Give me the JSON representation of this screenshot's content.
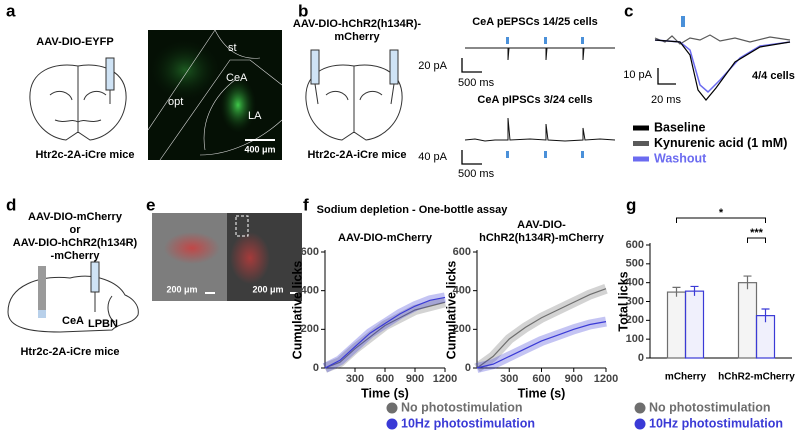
{
  "panels": {
    "a": {
      "letter": "a",
      "virus": "AAV-DIO-EYFP",
      "mouse": "Htr2c-2A-iCre mice",
      "image_labels": [
        "st",
        "opt",
        "CeA",
        "LA"
      ],
      "scale_bar": "400 μm"
    },
    "b": {
      "letter": "b",
      "virus": [
        "AAV-DIO-hChR2(h134R)-",
        "mCherry"
      ],
      "mouse": "Htr2c-2A-iCre mice",
      "traces": [
        {
          "title": "CeA pEPSCs 14/25 cells",
          "scale_y": "20 pA",
          "scale_x": "500 ms"
        },
        {
          "title": "CeA pIPSCs 3/24 cells",
          "scale_y": "40 pA",
          "scale_x": "500 ms"
        }
      ]
    },
    "c": {
      "letter": "c",
      "scale_y": "10 pA",
      "scale_x": "20 ms",
      "cells": "4/4 cells",
      "legend": [
        {
          "name": "Baseline",
          "color": "#000000"
        },
        {
          "name": "Kynurenic acid (1 mM)",
          "color": "#5a5a5a"
        },
        {
          "name": "Washout",
          "color": "#6b6bf0"
        }
      ]
    },
    "d": {
      "letter": "d",
      "virus": [
        "AAV-DIO-mCherry",
        "or",
        "AAV-DIO-hChR2(h134R)",
        "-mCherry"
      ],
      "regions": [
        "CeA",
        "LPBN"
      ],
      "mouse": "Htr2c-2A-iCre mice"
    },
    "e": {
      "letter": "e",
      "scale_bars": [
        "200 μm",
        "200 μm"
      ]
    },
    "f": {
      "letter": "f",
      "title": "Sodium depletion - One-bottle assay"
    },
    "g": {
      "letter": "g"
    }
  },
  "chart_data": [
    {
      "type": "line",
      "title": [
        "AAV-DIO-mCherry"
      ],
      "xlabel": "Time (s)",
      "ylabel": "Cumulative licks",
      "x": [
        0,
        150,
        300,
        450,
        600,
        750,
        900,
        1050,
        1200
      ],
      "xlim": [
        0,
        1200
      ],
      "xticks": [
        300,
        600,
        900,
        1200
      ],
      "ylim": [
        0,
        600
      ],
      "yticks": [
        0,
        200,
        400,
        600
      ],
      "series": [
        {
          "name": "No photostimulation",
          "color": "#6e6e6e",
          "values": [
            0,
            30,
            100,
            160,
            220,
            260,
            300,
            320,
            340
          ]
        },
        {
          "name": "10Hz photostimulation",
          "color": "#3a3ad6",
          "values": [
            0,
            40,
            110,
            180,
            230,
            280,
            320,
            350,
            365
          ]
        }
      ]
    },
    {
      "type": "line",
      "title": [
        "AAV-DIO-",
        "hChR2(h134R)-mCherry"
      ],
      "xlabel": "Time (s)",
      "ylabel": "Cumulative licks",
      "x": [
        0,
        150,
        300,
        450,
        600,
        750,
        900,
        1050,
        1200
      ],
      "xlim": [
        0,
        1200
      ],
      "xticks": [
        300,
        600,
        900,
        1200
      ],
      "ylim": [
        0,
        600
      ],
      "yticks": [
        0,
        200,
        400,
        600
      ],
      "series": [
        {
          "color": "#6e6e6e",
          "values": [
            0,
            60,
            150,
            210,
            260,
            300,
            340,
            380,
            410
          ]
        },
        {
          "color": "#3a3ad6",
          "values": [
            0,
            20,
            60,
            100,
            140,
            170,
            200,
            225,
            240
          ]
        }
      ]
    },
    {
      "type": "bar",
      "ylabel": "Total licks",
      "categories": [
        "mCherry",
        "hChR2-mCherry"
      ],
      "ylim": [
        0,
        600
      ],
      "yticks": [
        0,
        100,
        200,
        300,
        400,
        500,
        600
      ],
      "series": [
        {
          "name": "No photostimulation",
          "color": "#6e6e6e",
          "values": [
            350,
            400
          ],
          "errors": [
            25,
            35
          ]
        },
        {
          "name": "10Hz photostimulation",
          "color": "#3a3ad6",
          "values": [
            355,
            225
          ],
          "errors": [
            25,
            35
          ]
        }
      ],
      "annotations": [
        "*",
        "***"
      ]
    }
  ]
}
